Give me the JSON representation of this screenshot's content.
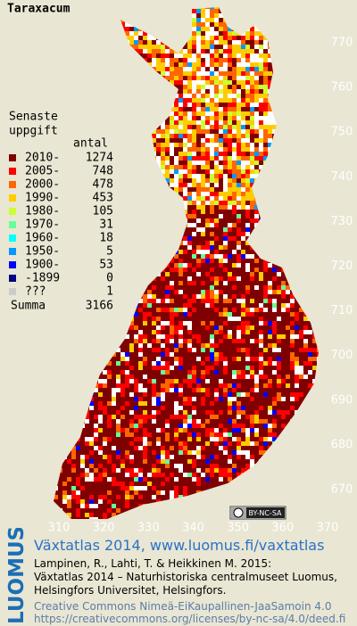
{
  "map": {
    "title": "Taraxacum",
    "legend": {
      "heading": [
        "Senaste",
        "uppgift"
      ],
      "count_header": "antal",
      "rows": [
        {
          "label": "2010-",
          "count": 1274,
          "color": "#7f0000"
        },
        {
          "label": "2005-",
          "count": 748,
          "color": "#ff0000"
        },
        {
          "label": "2000-",
          "count": 478,
          "color": "#ff6600"
        },
        {
          "label": "1990-",
          "count": 453,
          "color": "#ffcc00"
        },
        {
          "label": "1980-",
          "count": 105,
          "color": "#ccff33"
        },
        {
          "label": "1970-",
          "count": 31,
          "color": "#66ff99"
        },
        {
          "label": "1960-",
          "count": 18,
          "color": "#00ffff"
        },
        {
          "label": "1950-",
          "count": 5,
          "color": "#0099ff"
        },
        {
          "label": "1900-",
          "count": 53,
          "color": "#0000ff"
        },
        {
          "label": "-1899",
          "count": 0,
          "color": "#000080"
        },
        {
          "label": "???",
          "count": 1,
          "color": "#cccccc"
        }
      ],
      "total_label": "Summa",
      "total": 3166
    },
    "axes": {
      "y_ticks": [
        770,
        760,
        750,
        740,
        730,
        720,
        710,
        700,
        690,
        680,
        670
      ],
      "x_ticks": [
        310,
        320,
        330,
        340,
        350,
        360,
        370
      ]
    },
    "license_badge": "BY-NC-SA"
  },
  "footer": {
    "logo": "LUOMUS",
    "title": "Växtatlas 2014, www.luomus.fi/vaxtatlas",
    "citation": [
      "Lampinen, R., Lahti, T. & Heikkinen M. 2015:",
      "Växtatlas 2014 – Naturhistoriska centralmuseet Luomus,",
      "Helsingfors Universitet, Helsingfors."
    ],
    "license": [
      "Creative Commons Nimeä-EiKaupallinen-JaaSamoin 4.0",
      "https://creativecommons.org/licenses/by-nc-sa/4.0/deed.fi"
    ]
  }
}
